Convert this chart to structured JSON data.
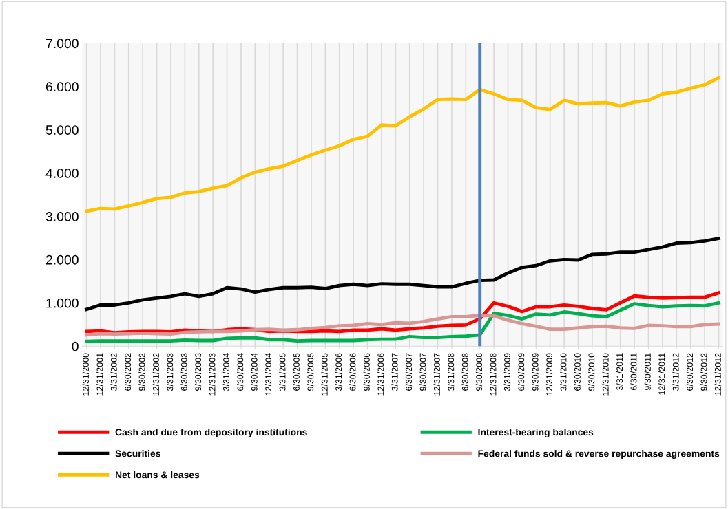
{
  "chart_data": {
    "type": "line",
    "categories": [
      "12/31/2000",
      "12/31/2001",
      "3/31/2002",
      "6/30/2002",
      "9/30/2002",
      "12/31/2002",
      "3/31/2003",
      "6/30/2003",
      "9/30/2003",
      "12/31/2003",
      "3/31/2004",
      "6/30/2004",
      "9/30/2004",
      "12/31/2004",
      "3/31/2005",
      "6/30/2005",
      "9/30/2005",
      "12/31/2005",
      "3/31/2006",
      "6/30/2006",
      "9/30/2006",
      "12/31/2006",
      "3/31/2007",
      "6/30/2007",
      "9/30/2007",
      "12/31/2007",
      "3/31/2008",
      "6/30/2008",
      "9/30/2008",
      "12/31/2008",
      "3/31/2009",
      "6/30/2009",
      "9/30/2009",
      "12/31/2009",
      "3/31/2010",
      "6/30/2010",
      "9/30/2010",
      "12/31/2010",
      "3/31/2011",
      "6/30/2011",
      "9/30/2011",
      "12/31/2011",
      "3/31/2012",
      "6/30/2012",
      "9/30/2012",
      "12/31/2012"
    ],
    "series": [
      {
        "name": "Cash and due from depository institutions",
        "color": "#ff0000",
        "values": [
          340,
          350,
          310,
          330,
          340,
          340,
          330,
          370,
          350,
          340,
          380,
          400,
          380,
          340,
          350,
          340,
          340,
          350,
          340,
          370,
          370,
          400,
          370,
          400,
          420,
          460,
          480,
          490,
          630,
          1000,
          920,
          800,
          910,
          910,
          950,
          920,
          870,
          840,
          1000,
          1160,
          1130,
          1110,
          1120,
          1130,
          1130,
          1230
        ]
      },
      {
        "name": "Interest-bearing balances",
        "color": "#00b050",
        "values": [
          110,
          120,
          120,
          120,
          120,
          120,
          120,
          140,
          130,
          130,
          180,
          190,
          190,
          150,
          150,
          120,
          130,
          130,
          130,
          130,
          150,
          160,
          160,
          220,
          200,
          200,
          220,
          230,
          260,
          760,
          710,
          630,
          740,
          720,
          790,
          750,
          700,
          680,
          830,
          980,
          940,
          910,
          930,
          940,
          930,
          1000
        ]
      },
      {
        "name": "Securities",
        "color": "#000000",
        "values": [
          850,
          950,
          950,
          1000,
          1070,
          1110,
          1150,
          1210,
          1150,
          1210,
          1350,
          1320,
          1250,
          1310,
          1350,
          1350,
          1360,
          1330,
          1400,
          1430,
          1400,
          1440,
          1430,
          1430,
          1400,
          1370,
          1370,
          1450,
          1520,
          1530,
          1690,
          1820,
          1860,
          1970,
          2000,
          1990,
          2120,
          2130,
          2170,
          2170,
          2230,
          2290,
          2380,
          2390,
          2430,
          2490
        ]
      },
      {
        "name": "Federal funds sold & reverse repurchase agreements",
        "color": "#d99694",
        "values": [
          260,
          290,
          280,
          290,
          300,
          290,
          280,
          320,
          330,
          340,
          340,
          350,
          380,
          390,
          370,
          380,
          410,
          430,
          470,
          480,
          520,
          500,
          540,
          530,
          570,
          630,
          680,
          680,
          710,
          700,
          600,
          520,
          460,
          390,
          390,
          420,
          450,
          460,
          420,
          410,
          480,
          470,
          450,
          450,
          500,
          510
        ]
      },
      {
        "name": "Net loans & leases",
        "color": "#ffc000",
        "values": [
          3120,
          3180,
          3170,
          3240,
          3320,
          3410,
          3440,
          3540,
          3570,
          3650,
          3710,
          3890,
          4020,
          4100,
          4160,
          4290,
          4420,
          4530,
          4630,
          4780,
          4850,
          5110,
          5090,
          5300,
          5480,
          5700,
          5710,
          5700,
          5930,
          5830,
          5700,
          5680,
          5510,
          5470,
          5680,
          5600,
          5620,
          5630,
          5550,
          5640,
          5680,
          5830,
          5870,
          5960,
          6040,
          6200
        ]
      }
    ],
    "ylim": [
      0,
      7000
    ],
    "yticks": [
      0,
      {
        "value": 1000,
        "label": "1.000"
      },
      {
        "value": 2000,
        "label": "2.000"
      },
      {
        "value": 3000,
        "label": "3.000"
      },
      {
        "value": 4000,
        "label": "4.000"
      },
      {
        "value": 5000,
        "label": "5.000"
      },
      {
        "value": 6000,
        "label": "6.000"
      },
      {
        "value": 7000,
        "label": "7.000"
      }
    ],
    "ref_lines": [
      {
        "axis": "x",
        "value": "9/30/2008",
        "color": "#4f81bd"
      }
    ],
    "grid": "x",
    "legend": "bottom",
    "marker": "none",
    "line_style": "solid"
  }
}
